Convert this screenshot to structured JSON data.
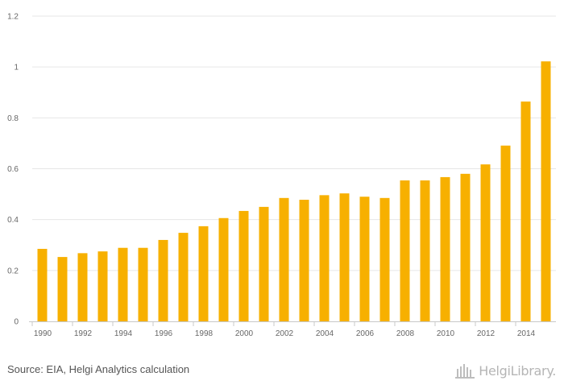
{
  "chart_data": {
    "type": "bar",
    "title": "",
    "xlabel": "",
    "ylabel": "",
    "ylim": [
      0,
      1.2
    ],
    "yticks": [
      "0",
      "0.2",
      "0.4",
      "0.6",
      "0.8",
      "1",
      "1.2"
    ],
    "ytick_values": [
      0,
      0.2,
      0.4,
      0.6,
      0.8,
      1.0,
      1.2
    ],
    "categories": [
      "1990",
      "1991",
      "1992",
      "1993",
      "1994",
      "1995",
      "1996",
      "1997",
      "1998",
      "1999",
      "2000",
      "2001",
      "2002",
      "2003",
      "2004",
      "2005",
      "2006",
      "2007",
      "2008",
      "2009",
      "2010",
      "2011",
      "2012",
      "2013",
      "2014",
      "2015"
    ],
    "xtick_labels": [
      "1990",
      "1992",
      "1994",
      "1996",
      "1998",
      "2000",
      "2002",
      "2004",
      "2006",
      "2008",
      "2010",
      "2012",
      "2014"
    ],
    "values": [
      0.285,
      0.253,
      0.268,
      0.275,
      0.289,
      0.289,
      0.32,
      0.348,
      0.374,
      0.406,
      0.434,
      0.45,
      0.485,
      0.478,
      0.496,
      0.503,
      0.49,
      0.485,
      0.554,
      0.554,
      0.567,
      0.58,
      0.617,
      0.691,
      0.864,
      1.022
    ],
    "bar_color": "#f7b000",
    "grid": true
  },
  "footer": {
    "source": "Source: EIA, Helgi Analytics calculation",
    "logo_text": "HelgiLibrary."
  }
}
